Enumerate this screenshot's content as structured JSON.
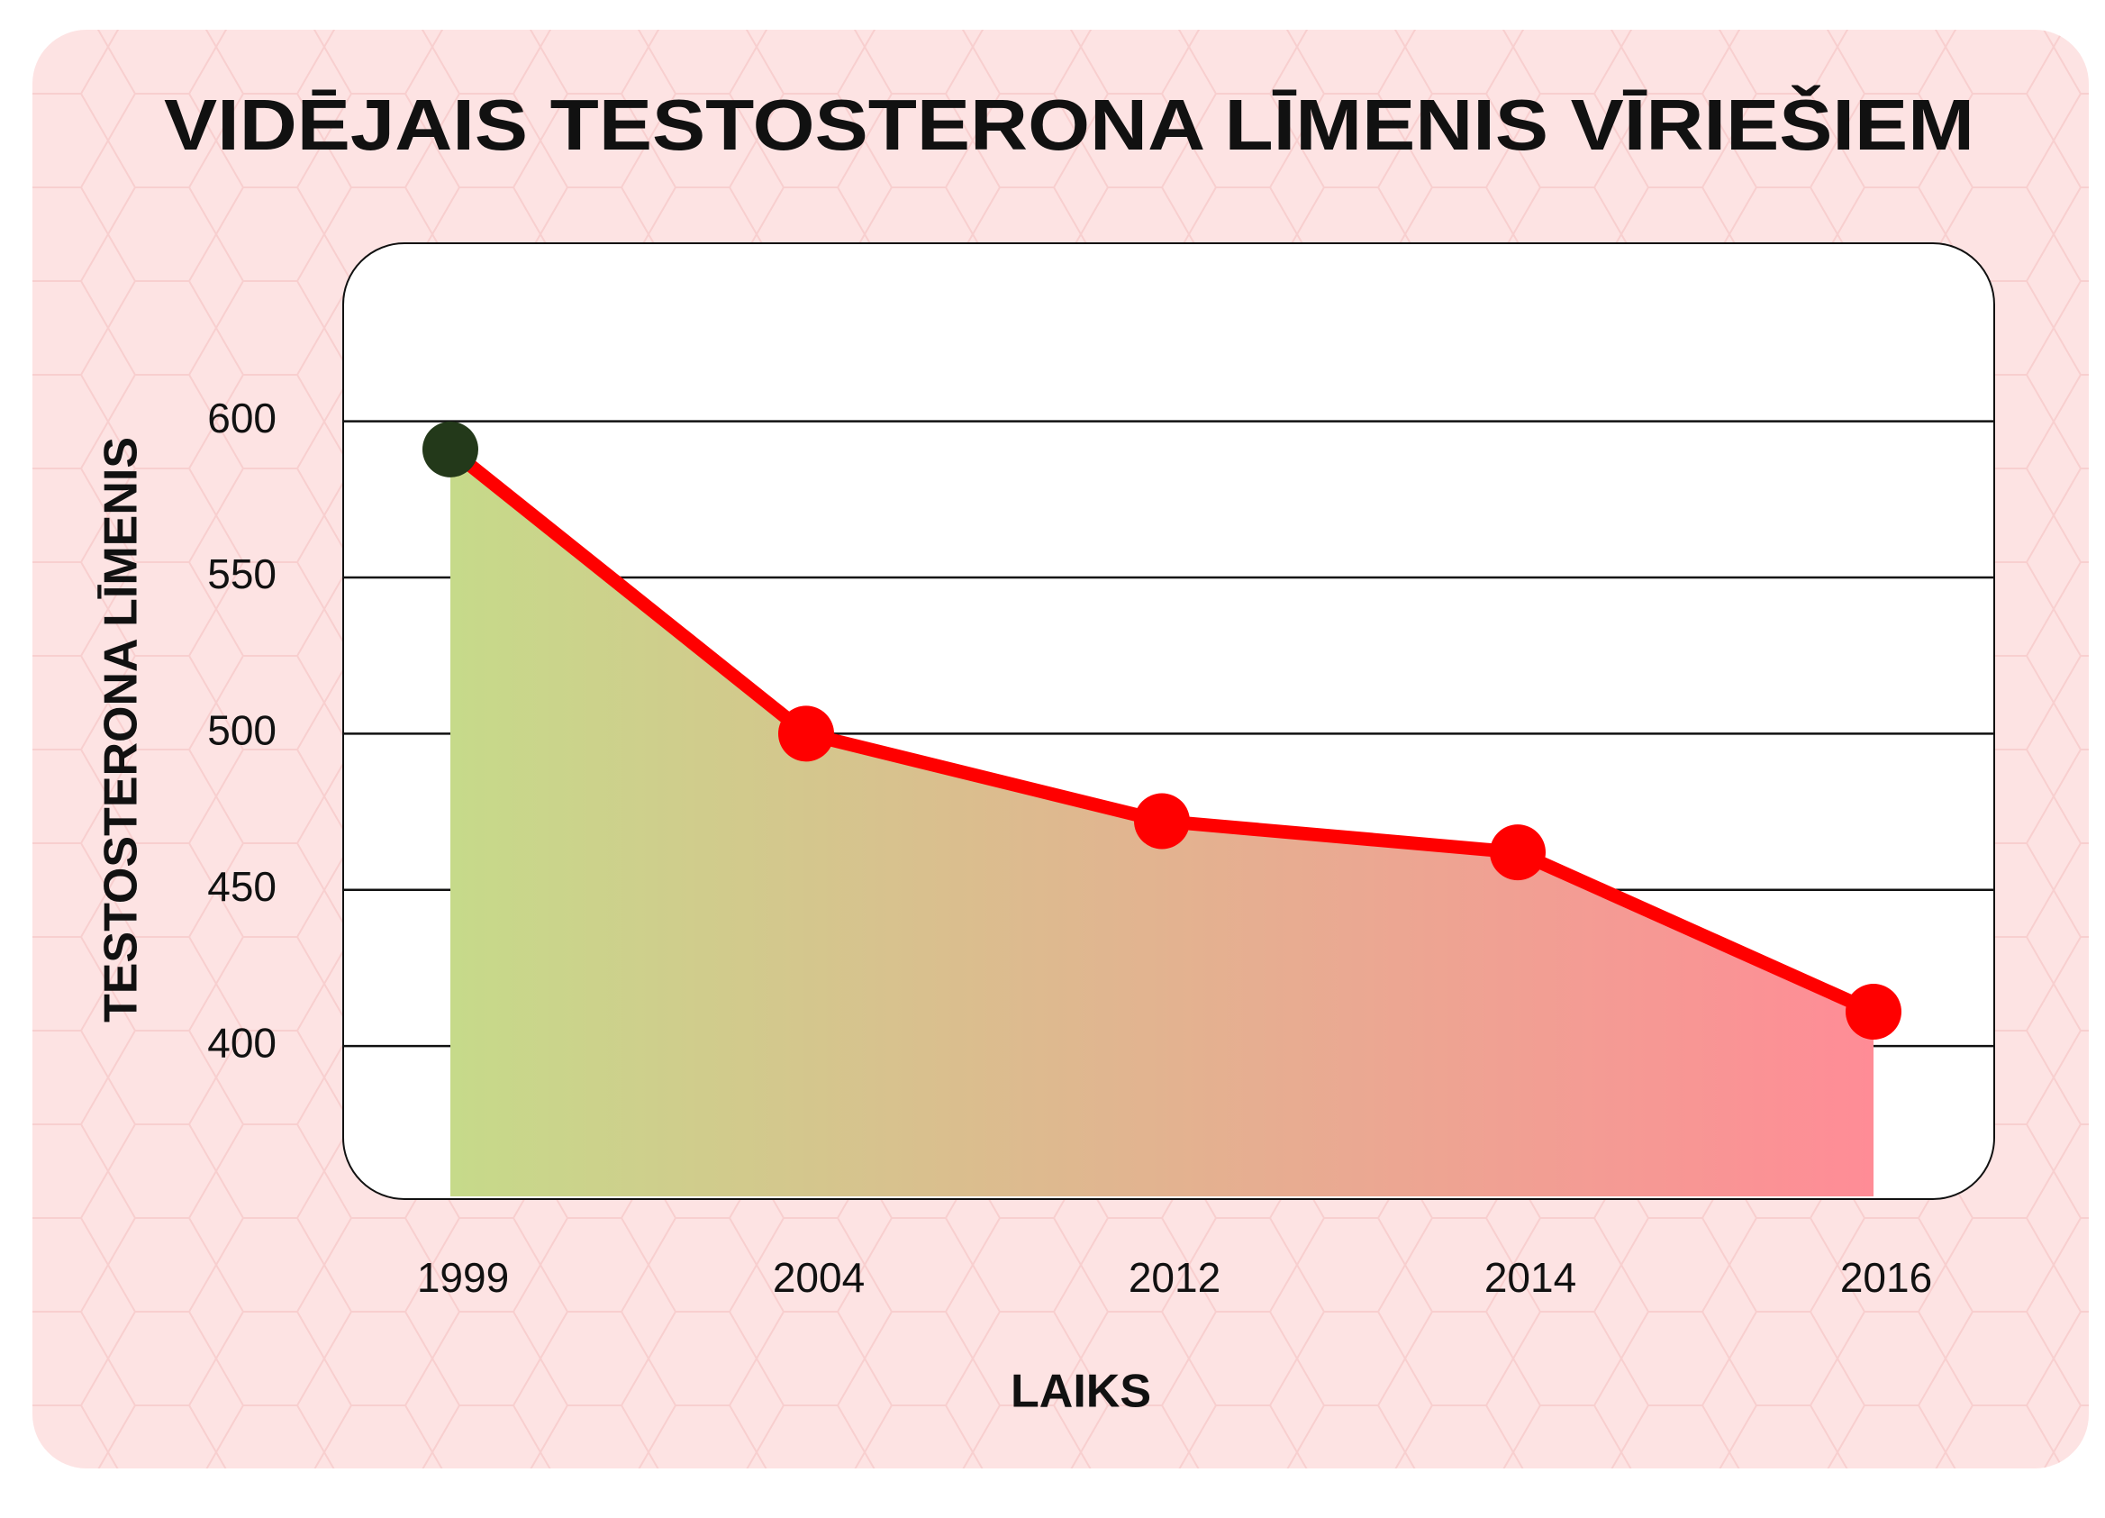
{
  "chart_data": {
    "type": "line",
    "title": "VIDĒJAIS TESTOSTERONA LĪMENIS VĪRIEŠIEM",
    "x_label": "LAIKS",
    "y_label": "TESTOSTERONA LĪMENIS",
    "categories": [
      "1999",
      "2004",
      "2012",
      "2014",
      "2016"
    ],
    "values": [
      591,
      500,
      472,
      462,
      411
    ],
    "line_color": "#ff0000",
    "point_colors": [
      "#23391a",
      "#ff0000",
      "#ff0000",
      "#ff0000",
      "#ff0000"
    ],
    "area_gradient": [
      "#c6da8a",
      "#ff8c96"
    ],
    "ylim": [
      351,
      657
    ],
    "yticks": [
      400,
      450,
      500,
      550,
      600
    ],
    "grid": true
  }
}
